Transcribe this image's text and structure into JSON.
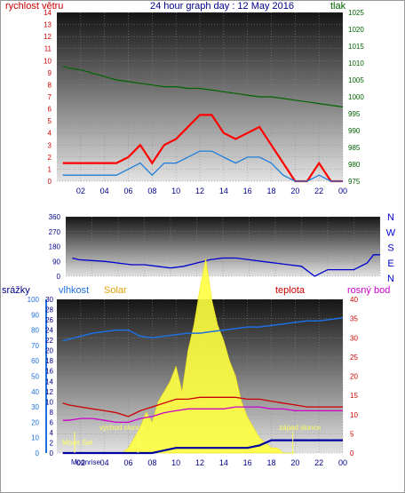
{
  "colors": {
    "wind": "#ff0000",
    "wind_avg": "#1e7dd8",
    "pressure": "#006400",
    "wdir": "#0000cc",
    "rain": "#0000a0",
    "humidity": "#1e6fe0",
    "solar": "#ffff40",
    "temp": "#cc0000",
    "dew": "#cc00cc",
    "left_axis": "#cc0000",
    "right_axis": "#006400",
    "label": "#ffff66"
  },
  "chart_data": [
    {
      "type": "line",
      "title": "24 hour graph day : 12 May 2016",
      "y_left_label": "rychlost větru",
      "y_right_label": "tlak",
      "ylim_left": [
        0,
        14
      ],
      "ylim_right": [
        975,
        1025
      ],
      "y_left_ticks": [
        "0",
        "1",
        "2",
        "3",
        "4",
        "5",
        "6",
        "7",
        "8",
        "9",
        "10",
        "11",
        "12",
        "13",
        "14"
      ],
      "y_right_ticks": [
        "975",
        "980",
        "985",
        "990",
        "995",
        "1000",
        "1005",
        "1010",
        "1015",
        "1020",
        "1025"
      ],
      "x_ticks": [
        "02",
        "04",
        "06",
        "08",
        "10",
        "12",
        "14",
        "16",
        "18",
        "20",
        "22",
        "00"
      ],
      "grid": "on",
      "series": [
        {
          "key": "pressure",
          "x": [
            0.5,
            1,
            2,
            3,
            4,
            5,
            6,
            7,
            8,
            9,
            10,
            11,
            12,
            13,
            14,
            15,
            16,
            17,
            18,
            19,
            20,
            21,
            22,
            23,
            24
          ],
          "values": [
            1009,
            1008.5,
            1008,
            1007,
            1006,
            1005,
            1004.5,
            1004,
            1003.5,
            1003,
            1003,
            1002.5,
            1002.5,
            1002,
            1001.5,
            1001,
            1000.5,
            1000,
            1000,
            999.5,
            999,
            998.5,
            998,
            997.5,
            997
          ]
        },
        {
          "key": "wind_gust",
          "x": [
            0.5,
            1,
            2,
            3,
            4,
            5,
            6,
            7,
            8,
            9,
            10,
            11,
            12,
            13,
            14,
            15,
            16,
            17,
            18,
            19,
            20,
            21,
            22,
            23,
            24
          ],
          "values": [
            1.5,
            1.5,
            1.5,
            1.5,
            1.5,
            1.5,
            2,
            3,
            1.5,
            3,
            3.5,
            4.5,
            5.5,
            5.5,
            4,
            3.5,
            4,
            4.5,
            3,
            1.5,
            0,
            0,
            1.5,
            0,
            0
          ]
        },
        {
          "key": "wind_avg",
          "x": [
            0.5,
            1,
            2,
            3,
            4,
            5,
            6,
            7,
            8,
            9,
            10,
            11,
            12,
            13,
            14,
            15,
            16,
            17,
            18,
            19,
            20,
            21,
            22,
            23,
            24
          ],
          "values": [
            0.5,
            0.5,
            0.5,
            0.5,
            0.5,
            0.5,
            1,
            1.5,
            0.5,
            1.5,
            1.5,
            2,
            2.5,
            2.5,
            2,
            1.5,
            2,
            2,
            1.5,
            0.5,
            0,
            0,
            0.5,
            0,
            0
          ]
        }
      ]
    },
    {
      "type": "line",
      "y_right_labels": [
        "N",
        "W",
        "S",
        "E",
        "N"
      ],
      "ylim": [
        0,
        360
      ],
      "y_ticks": [
        "0",
        "90",
        "180",
        "270",
        "360"
      ],
      "series": [
        {
          "key": "wdir",
          "x": [
            0.5,
            1,
            2,
            3,
            4,
            5,
            6,
            7,
            8,
            9,
            10,
            11,
            12,
            13,
            14,
            15,
            16,
            17,
            18,
            19,
            20,
            21,
            22,
            23,
            23.5,
            24
          ],
          "values": [
            110,
            100,
            95,
            90,
            80,
            70,
            70,
            60,
            50,
            60,
            80,
            100,
            110,
            110,
            100,
            90,
            80,
            70,
            60,
            0,
            40,
            40,
            40,
            80,
            130,
            130
          ]
        }
      ]
    },
    {
      "type": "area",
      "labels": {
        "rain": "srážky",
        "humidity": "vlhkost",
        "solar": "Solar",
        "temp": "teplota",
        "dew": "rosný bod"
      },
      "y_rain_ticks": [
        "0",
        "10",
        "20",
        "30",
        "40",
        "50",
        "60",
        "70",
        "80",
        "90",
        "100"
      ],
      "y_temp_left_ticks": [
        "0",
        "2",
        "4",
        "6",
        "8",
        "10",
        "12",
        "14",
        "16",
        "18",
        "20",
        "22",
        "24",
        "26",
        "28",
        "30"
      ],
      "y_temp_right_ticks": [
        "0",
        "5",
        "10",
        "15",
        "20",
        "25",
        "30",
        "35",
        "40"
      ],
      "ylim_humidity": [
        0,
        100
      ],
      "ylim_temp": [
        0,
        40
      ],
      "ylim_rain": [
        0,
        30
      ],
      "x_ticks": [
        "02",
        "04",
        "06",
        "08",
        "10",
        "12",
        "14",
        "16",
        "18",
        "20",
        "22",
        "00"
      ],
      "annotations": {
        "moonset": "Moon Set",
        "sunrise": "východ slunce",
        "sunset": "západ slunce",
        "moonrise": "Moonrise"
      },
      "series": [
        {
          "key": "humidity",
          "x": [
            0.5,
            1,
            2,
            3,
            4,
            5,
            6,
            7,
            8,
            9,
            10,
            11,
            12,
            13,
            14,
            15,
            16,
            17,
            18,
            19,
            20,
            21,
            22,
            23,
            24
          ],
          "values": [
            73,
            74,
            76,
            78,
            79,
            80,
            80,
            76,
            75,
            76,
            77,
            78,
            78,
            79,
            80,
            81,
            82,
            82,
            83,
            84,
            85,
            86,
            86,
            87,
            88
          ]
        },
        {
          "key": "temp",
          "x": [
            0.5,
            1,
            2,
            3,
            4,
            5,
            6,
            7,
            8,
            9,
            10,
            11,
            12,
            13,
            14,
            15,
            16,
            17,
            18,
            19,
            20,
            21,
            22,
            23,
            24
          ],
          "values": [
            13,
            12.5,
            12,
            11.5,
            11,
            10.5,
            9.5,
            11,
            12,
            13,
            14,
            14,
            14.5,
            14.5,
            14.5,
            14.5,
            14,
            14,
            13.5,
            13,
            12.5,
            12,
            12,
            12,
            12
          ]
        },
        {
          "key": "dew",
          "x": [
            0.5,
            1,
            2,
            3,
            4,
            5,
            6,
            7,
            8,
            9,
            10,
            11,
            12,
            13,
            14,
            15,
            16,
            17,
            18,
            19,
            20,
            21,
            22,
            23,
            24
          ],
          "values": [
            8.5,
            8.5,
            9,
            9,
            8.5,
            8,
            8,
            9,
            9.5,
            10.5,
            11,
            11.5,
            11.5,
            11.5,
            11.5,
            12,
            12,
            12,
            11.5,
            11.5,
            11,
            11,
            11,
            11,
            11
          ]
        },
        {
          "key": "solar",
          "x": [
            5.5,
            6,
            6.5,
            7,
            7.5,
            8,
            8.5,
            9,
            9.5,
            10,
            10.5,
            11,
            11.5,
            12,
            12.5,
            13,
            13.5,
            14,
            14.5,
            15,
            15.5,
            16,
            16.5,
            17,
            17.5,
            18,
            18.5,
            19,
            19.5,
            20
          ],
          "values": [
            0,
            1,
            3,
            5,
            8,
            6,
            10,
            12,
            14,
            17,
            12,
            20,
            25,
            32,
            38,
            30,
            25,
            22,
            18,
            15,
            10,
            7,
            5,
            3,
            2,
            1,
            1,
            0,
            0,
            0
          ]
        },
        {
          "key": "rain",
          "x": [
            0.5,
            8,
            9,
            10,
            11,
            12,
            13,
            14,
            15,
            16,
            17,
            18,
            19,
            20,
            21,
            22,
            23,
            24
          ],
          "values": [
            0,
            0,
            0.5,
            1,
            1,
            1,
            1,
            1,
            1,
            1,
            1.5,
            2.5,
            2.5,
            2.5,
            2.5,
            2.5,
            2.5,
            2.5
          ]
        }
      ]
    }
  ]
}
